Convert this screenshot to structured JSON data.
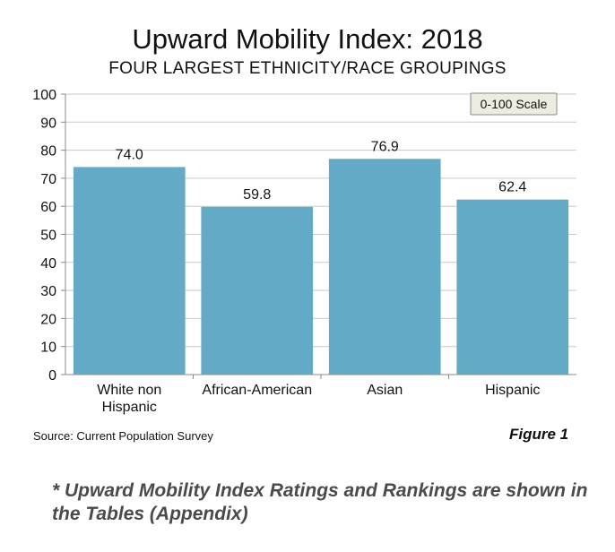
{
  "chart_data": {
    "type": "bar",
    "title": "Upward Mobility Index: 2018",
    "subtitle": "FOUR LARGEST ETHNICITY/RACE GROUPINGS",
    "categories": [
      [
        "White non",
        "Hispanic"
      ],
      [
        "African-American"
      ],
      [
        "Asian"
      ],
      [
        "Hispanic"
      ]
    ],
    "values": [
      74.0,
      59.8,
      76.9,
      62.4
    ],
    "value_labels": [
      "74.0",
      "59.8",
      "76.9",
      "62.4"
    ],
    "ylim": [
      0,
      100
    ],
    "yticks": [
      0,
      10,
      20,
      30,
      40,
      50,
      60,
      70,
      80,
      90,
      100
    ],
    "grid": true,
    "legend_box": "0-100 Scale",
    "bar_color": "#62aac6"
  },
  "source": "Source: Current Population Survey",
  "figure_label": "Figure 1",
  "footnote": "* Upward Mobility Index Ratings and Rankings are shown in the Tables (Appendix)"
}
